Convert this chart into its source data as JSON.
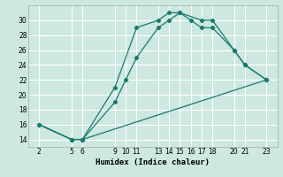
{
  "xlabel": "Humidex (Indice chaleur)",
  "bg_color": "#cce8e0",
  "line_color": "#1a7a6e",
  "grid_color": "#ffffff",
  "lines": [
    {
      "x": [
        2,
        5,
        6,
        9,
        11,
        13,
        14,
        15,
        16,
        17,
        18,
        20,
        21,
        23
      ],
      "y": [
        16,
        14,
        14,
        21,
        29,
        30,
        31,
        31,
        30,
        29,
        29,
        26,
        24,
        22
      ]
    },
    {
      "x": [
        2,
        5,
        6,
        9,
        10,
        11,
        13,
        14,
        15,
        17,
        18,
        20,
        21,
        23
      ],
      "y": [
        16,
        14,
        14,
        19,
        22,
        25,
        29,
        30,
        31,
        30,
        30,
        26,
        24,
        22
      ]
    },
    {
      "x": [
        2,
        5,
        6,
        23
      ],
      "y": [
        16,
        14,
        14,
        22
      ]
    }
  ],
  "xlim": [
    1,
    24
  ],
  "ylim": [
    13,
    32
  ],
  "xticks": [
    2,
    5,
    6,
    9,
    10,
    11,
    13,
    14,
    15,
    16,
    17,
    18,
    20,
    21,
    23
  ],
  "yticks": [
    14,
    16,
    18,
    20,
    22,
    24,
    26,
    28,
    30
  ],
  "tick_fontsize": 5.5,
  "xlabel_fontsize": 6.5
}
